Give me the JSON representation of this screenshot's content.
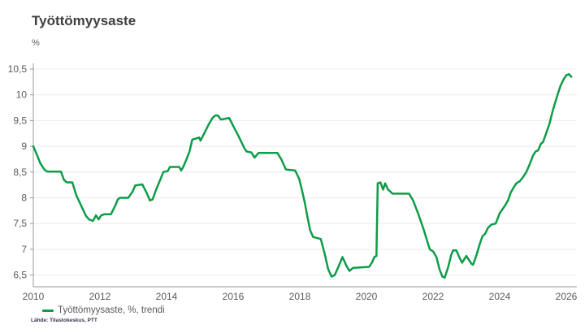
{
  "header": {
    "title": "Työttömyysaste",
    "unit": "%"
  },
  "legend": {
    "label": "Työttömyysaste, %, trendi"
  },
  "footer": {
    "source": "Lähde: Tilastokeskus, PTT"
  },
  "colors": {
    "line": "#0e9c47",
    "title_text": "#3f3f3f",
    "axis_text": "#595959",
    "grid": "#ebebeb",
    "axis_line": "#999999",
    "background": "#ffffff"
  },
  "chart_data": {
    "type": "line",
    "title": "Työttömyysaste",
    "ylabel": "%",
    "legend_position": "bottom-left",
    "grid": "horizontal-only",
    "xlim": [
      2010,
      2026.3
    ],
    "ylim": [
      6.5,
      10.5
    ],
    "y_ticks": [
      {
        "v": 10.5,
        "label": "10,5"
      },
      {
        "v": 10.0,
        "label": "10"
      },
      {
        "v": 9.5,
        "label": "9,5"
      },
      {
        "v": 9.0,
        "label": "9"
      },
      {
        "v": 8.5,
        "label": "8,5"
      },
      {
        "v": 8.0,
        "label": "8"
      },
      {
        "v": 7.5,
        "label": "7,5"
      },
      {
        "v": 7.0,
        "label": "7"
      },
      {
        "v": 6.5,
        "label": "6,5"
      }
    ],
    "x_ticks": [
      {
        "v": 2010,
        "label": "2010"
      },
      {
        "v": 2012,
        "label": "2012"
      },
      {
        "v": 2014,
        "label": "2014"
      },
      {
        "v": 2016,
        "label": "2016"
      },
      {
        "v": 2018,
        "label": "2018"
      },
      {
        "v": 2020,
        "label": "2020"
      },
      {
        "v": 2022,
        "label": "2022"
      },
      {
        "v": 2024,
        "label": "2024"
      },
      {
        "v": 2026,
        "label": "2026"
      }
    ],
    "series": [
      {
        "name": "Työttömyysaste, %, trendi",
        "points": [
          [
            2010.0,
            9.0
          ],
          [
            2010.08,
            8.88
          ],
          [
            2010.21,
            8.67
          ],
          [
            2010.33,
            8.55
          ],
          [
            2010.42,
            8.51
          ],
          [
            2010.83,
            8.51
          ],
          [
            2010.92,
            8.35
          ],
          [
            2011.0,
            8.3
          ],
          [
            2011.17,
            8.3
          ],
          [
            2011.29,
            8.05
          ],
          [
            2011.42,
            7.87
          ],
          [
            2011.58,
            7.65
          ],
          [
            2011.67,
            7.58
          ],
          [
            2011.79,
            7.55
          ],
          [
            2011.88,
            7.66
          ],
          [
            2011.96,
            7.58
          ],
          [
            2012.04,
            7.66
          ],
          [
            2012.13,
            7.68
          ],
          [
            2012.33,
            7.68
          ],
          [
            2012.46,
            7.85
          ],
          [
            2012.54,
            7.97
          ],
          [
            2012.6,
            8.0
          ],
          [
            2012.85,
            8.0
          ],
          [
            2012.98,
            8.12
          ],
          [
            2013.06,
            8.24
          ],
          [
            2013.27,
            8.26
          ],
          [
            2013.4,
            8.1
          ],
          [
            2013.5,
            7.95
          ],
          [
            2013.58,
            7.97
          ],
          [
            2013.7,
            8.18
          ],
          [
            2013.83,
            8.38
          ],
          [
            2013.9,
            8.5
          ],
          [
            2014.04,
            8.52
          ],
          [
            2014.1,
            8.6
          ],
          [
            2014.38,
            8.6
          ],
          [
            2014.44,
            8.53
          ],
          [
            2014.5,
            8.6
          ],
          [
            2014.58,
            8.72
          ],
          [
            2014.69,
            8.9
          ],
          [
            2014.77,
            9.13
          ],
          [
            2014.98,
            9.17
          ],
          [
            2015.02,
            9.11
          ],
          [
            2015.14,
            9.26
          ],
          [
            2015.26,
            9.42
          ],
          [
            2015.38,
            9.55
          ],
          [
            2015.46,
            9.6
          ],
          [
            2015.54,
            9.6
          ],
          [
            2015.63,
            9.52
          ],
          [
            2015.88,
            9.55
          ],
          [
            2016.02,
            9.37
          ],
          [
            2016.15,
            9.21
          ],
          [
            2016.27,
            9.05
          ],
          [
            2016.35,
            8.95
          ],
          [
            2016.4,
            8.9
          ],
          [
            2016.55,
            8.88
          ],
          [
            2016.64,
            8.78
          ],
          [
            2016.76,
            8.87
          ],
          [
            2017.33,
            8.87
          ],
          [
            2017.45,
            8.74
          ],
          [
            2017.54,
            8.61
          ],
          [
            2017.58,
            8.55
          ],
          [
            2017.86,
            8.53
          ],
          [
            2017.98,
            8.37
          ],
          [
            2018.06,
            8.16
          ],
          [
            2018.15,
            7.9
          ],
          [
            2018.23,
            7.63
          ],
          [
            2018.31,
            7.37
          ],
          [
            2018.4,
            7.24
          ],
          [
            2018.63,
            7.2
          ],
          [
            2018.75,
            6.9
          ],
          [
            2018.85,
            6.62
          ],
          [
            2018.95,
            6.47
          ],
          [
            2019.05,
            6.5
          ],
          [
            2019.17,
            6.68
          ],
          [
            2019.28,
            6.85
          ],
          [
            2019.4,
            6.68
          ],
          [
            2019.49,
            6.58
          ],
          [
            2019.6,
            6.64
          ],
          [
            2020.08,
            6.66
          ],
          [
            2020.17,
            6.75
          ],
          [
            2020.24,
            6.85
          ],
          [
            2020.3,
            6.87
          ],
          [
            2020.34,
            8.28
          ],
          [
            2020.42,
            8.3
          ],
          [
            2020.5,
            8.16
          ],
          [
            2020.56,
            8.28
          ],
          [
            2020.65,
            8.16
          ],
          [
            2020.72,
            8.12
          ],
          [
            2020.78,
            8.08
          ],
          [
            2021.28,
            8.08
          ],
          [
            2021.4,
            7.95
          ],
          [
            2021.55,
            7.7
          ],
          [
            2021.7,
            7.42
          ],
          [
            2021.83,
            7.15
          ],
          [
            2021.9,
            7.0
          ],
          [
            2022.0,
            6.96
          ],
          [
            2022.1,
            6.85
          ],
          [
            2022.2,
            6.6
          ],
          [
            2022.28,
            6.47
          ],
          [
            2022.35,
            6.45
          ],
          [
            2022.45,
            6.65
          ],
          [
            2022.55,
            6.9
          ],
          [
            2022.6,
            6.98
          ],
          [
            2022.7,
            6.98
          ],
          [
            2022.8,
            6.83
          ],
          [
            2022.87,
            6.74
          ],
          [
            2022.93,
            6.8
          ],
          [
            2023.0,
            6.87
          ],
          [
            2023.07,
            6.8
          ],
          [
            2023.15,
            6.72
          ],
          [
            2023.2,
            6.7
          ],
          [
            2023.3,
            6.88
          ],
          [
            2023.4,
            7.1
          ],
          [
            2023.48,
            7.25
          ],
          [
            2023.56,
            7.3
          ],
          [
            2023.65,
            7.42
          ],
          [
            2023.75,
            7.48
          ],
          [
            2023.88,
            7.5
          ],
          [
            2024.0,
            7.7
          ],
          [
            2024.15,
            7.84
          ],
          [
            2024.25,
            7.95
          ],
          [
            2024.33,
            8.1
          ],
          [
            2024.42,
            8.2
          ],
          [
            2024.5,
            8.28
          ],
          [
            2024.6,
            8.32
          ],
          [
            2024.7,
            8.4
          ],
          [
            2024.8,
            8.5
          ],
          [
            2024.9,
            8.65
          ],
          [
            2025.0,
            8.82
          ],
          [
            2025.08,
            8.9
          ],
          [
            2025.15,
            8.92
          ],
          [
            2025.24,
            9.05
          ],
          [
            2025.3,
            9.08
          ],
          [
            2025.4,
            9.26
          ],
          [
            2025.5,
            9.45
          ],
          [
            2025.58,
            9.66
          ],
          [
            2025.66,
            9.84
          ],
          [
            2025.75,
            10.03
          ],
          [
            2025.83,
            10.18
          ],
          [
            2025.92,
            10.3
          ],
          [
            2026.0,
            10.38
          ],
          [
            2026.08,
            10.4
          ],
          [
            2026.15,
            10.35
          ]
        ]
      }
    ]
  }
}
